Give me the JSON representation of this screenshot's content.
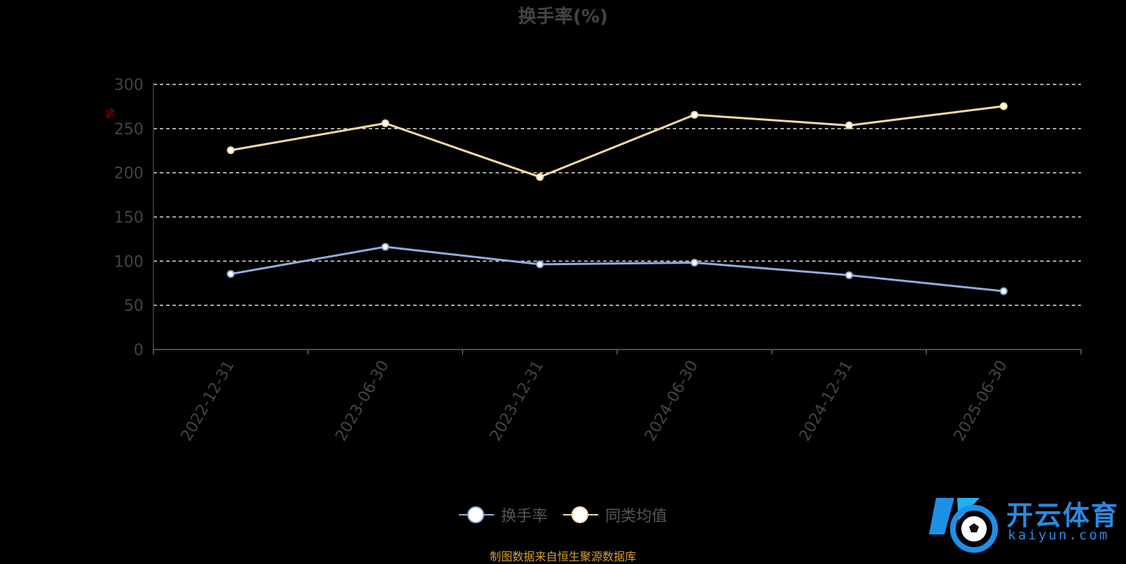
{
  "chart_data": {
    "type": "line",
    "title": "换手率(%)",
    "ylabel": "%",
    "categories": [
      "2022-12-31",
      "2023-06-30",
      "2023-12-31",
      "2024-06-30",
      "2024-12-31",
      "2025-06-30"
    ],
    "y_ticks": [
      "300",
      "250",
      "200",
      "150",
      "100",
      "50",
      "0"
    ],
    "ylim": [
      0,
      300
    ],
    "grid": true,
    "legend_position": "bottom",
    "series": [
      {
        "name": "换手率",
        "color": "#8eaede",
        "values": [
          85.5,
          116.2,
          96.4,
          98.3,
          84.1,
          66.0
        ]
      },
      {
        "name": "同类均值",
        "color": "#f7d9a0",
        "values": [
          225.5,
          256.0,
          195.2,
          265.6,
          253.6,
          275.3
        ]
      }
    ]
  },
  "legend": [
    {
      "label": "换手率",
      "color": "#8eaede"
    },
    {
      "label": "同类均值",
      "color": "#f7d9a0"
    }
  ],
  "source": "制图数据来自恒生聚源数据库",
  "watermark": {
    "name": "开云体育",
    "domain": "kaiyun.com"
  }
}
